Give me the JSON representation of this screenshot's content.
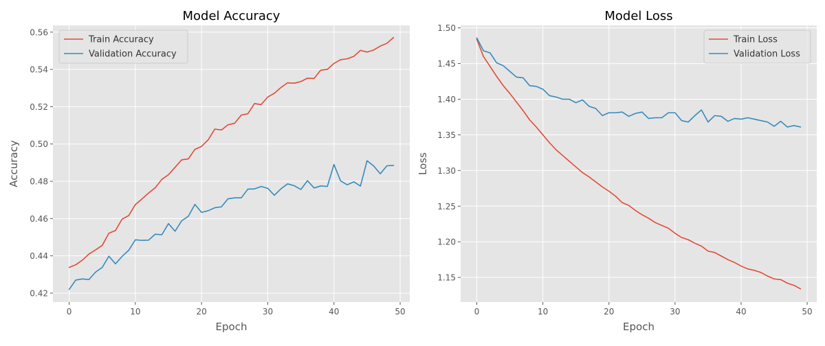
{
  "chart_data": [
    {
      "type": "line",
      "title": "Model Accuracy",
      "xlabel": "Epoch",
      "ylabel": "Accuracy",
      "xlim": [
        -2.45,
        51.45
      ],
      "ylim": [
        0.4152,
        0.5636
      ],
      "xticks": [
        0,
        10,
        20,
        30,
        40,
        50
      ],
      "yticks": [
        0.42,
        0.44,
        0.46,
        0.48,
        0.5,
        0.52,
        0.54,
        0.56
      ],
      "ytick_decimals": 2,
      "grid": true,
      "legend_position": "upper-left",
      "x": [
        0,
        1,
        2,
        3,
        4,
        5,
        6,
        7,
        8,
        9,
        10,
        11,
        12,
        13,
        14,
        15,
        16,
        17,
        18,
        19,
        20,
        21,
        22,
        23,
        24,
        25,
        26,
        27,
        28,
        29,
        30,
        31,
        32,
        33,
        34,
        35,
        36,
        37,
        38,
        39,
        40,
        41,
        42,
        43,
        44,
        45,
        46,
        47,
        48,
        49
      ],
      "series": [
        {
          "name": "Train Accuracy",
          "color": "#E24A33",
          "values": [
            0.4338,
            0.4352,
            0.4377,
            0.441,
            0.4432,
            0.4456,
            0.4521,
            0.4536,
            0.4597,
            0.4616,
            0.4675,
            0.4705,
            0.4737,
            0.4765,
            0.481,
            0.4835,
            0.4875,
            0.4915,
            0.492,
            0.4971,
            0.4987,
            0.5022,
            0.508,
            0.5075,
            0.5103,
            0.5111,
            0.5155,
            0.5162,
            0.5217,
            0.5211,
            0.5252,
            0.5272,
            0.5303,
            0.5328,
            0.5326,
            0.5335,
            0.5353,
            0.5351,
            0.5396,
            0.54,
            0.5432,
            0.5452,
            0.5457,
            0.547,
            0.5502,
            0.5493,
            0.5504,
            0.5525,
            0.554,
            0.5571
          ]
        },
        {
          "name": "Validation Accuracy",
          "color": "#348ABD",
          "values": [
            0.422,
            0.427,
            0.4276,
            0.4273,
            0.4313,
            0.4338,
            0.4398,
            0.4357,
            0.4397,
            0.443,
            0.4486,
            0.4483,
            0.4484,
            0.4516,
            0.4513,
            0.4573,
            0.4532,
            0.4588,
            0.4612,
            0.4676,
            0.4633,
            0.4642,
            0.4658,
            0.4663,
            0.4706,
            0.4711,
            0.4711,
            0.4758,
            0.4759,
            0.4772,
            0.4762,
            0.4725,
            0.476,
            0.4786,
            0.4776,
            0.4756,
            0.4803,
            0.4764,
            0.4775,
            0.4772,
            0.489,
            0.4802,
            0.4781,
            0.4797,
            0.4774,
            0.491,
            0.4882,
            0.484,
            0.4883,
            0.4885
          ]
        }
      ]
    },
    {
      "type": "line",
      "title": "Model Loss",
      "xlabel": "Epoch",
      "ylabel": "Loss",
      "xlim": [
        -2.45,
        51.45
      ],
      "ylim": [
        1.1155,
        1.5035
      ],
      "xticks": [
        0,
        10,
        20,
        30,
        40,
        50
      ],
      "yticks": [
        1.15,
        1.2,
        1.25,
        1.3,
        1.35,
        1.4,
        1.45,
        1.5
      ],
      "ytick_decimals": 2,
      "grid": true,
      "legend_position": "upper-right",
      "x": [
        0,
        1,
        2,
        3,
        4,
        5,
        6,
        7,
        8,
        9,
        10,
        11,
        12,
        13,
        14,
        15,
        16,
        17,
        18,
        19,
        20,
        21,
        22,
        23,
        24,
        25,
        26,
        27,
        28,
        29,
        30,
        31,
        32,
        33,
        34,
        35,
        36,
        37,
        38,
        39,
        40,
        41,
        42,
        43,
        44,
        45,
        46,
        47,
        48,
        49
      ],
      "series": [
        {
          "name": "Train Loss",
          "color": "#E24A33",
          "values": [
            1.484,
            1.46,
            1.446,
            1.432,
            1.419,
            1.408,
            1.396,
            1.384,
            1.371,
            1.361,
            1.35,
            1.339,
            1.329,
            1.321,
            1.313,
            1.305,
            1.297,
            1.291,
            1.284,
            1.277,
            1.271,
            1.264,
            1.255,
            1.251,
            1.244,
            1.238,
            1.233,
            1.227,
            1.223,
            1.219,
            1.212,
            1.206,
            1.203,
            1.198,
            1.194,
            1.187,
            1.185,
            1.18,
            1.175,
            1.171,
            1.166,
            1.162,
            1.16,
            1.157,
            1.152,
            1.148,
            1.147,
            1.142,
            1.139,
            1.134
          ]
        },
        {
          "name": "Validation Loss",
          "color": "#348ABD",
          "values": [
            1.486,
            1.468,
            1.465,
            1.451,
            1.447,
            1.439,
            1.431,
            1.43,
            1.419,
            1.418,
            1.414,
            1.405,
            1.403,
            1.4,
            1.4,
            1.395,
            1.399,
            1.39,
            1.387,
            1.377,
            1.381,
            1.381,
            1.382,
            1.376,
            1.38,
            1.382,
            1.373,
            1.374,
            1.374,
            1.381,
            1.381,
            1.37,
            1.368,
            1.377,
            1.385,
            1.368,
            1.377,
            1.376,
            1.369,
            1.373,
            1.372,
            1.374,
            1.372,
            1.37,
            1.368,
            1.362,
            1.369,
            1.361,
            1.363,
            1.361
          ]
        }
      ]
    }
  ]
}
